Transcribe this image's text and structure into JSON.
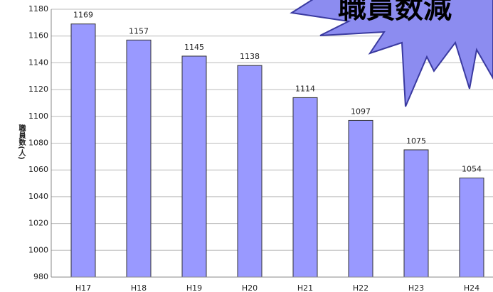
{
  "chart_data": {
    "type": "bar",
    "annotation": "職員数減",
    "y_label": "職員数(人)",
    "categories": [
      "H17",
      "H18",
      "H19",
      "H20",
      "H21",
      "H22",
      "H23",
      "H24"
    ],
    "values": [
      1169,
      1157,
      1145,
      1138,
      1114,
      1097,
      1075,
      1054
    ],
    "color": "#9999ff",
    "ylim": [
      980,
      1180
    ],
    "yticks": [
      980,
      1000,
      1020,
      1040,
      1060,
      1080,
      1100,
      1120,
      1140,
      1160,
      1180
    ],
    "grid": true
  }
}
